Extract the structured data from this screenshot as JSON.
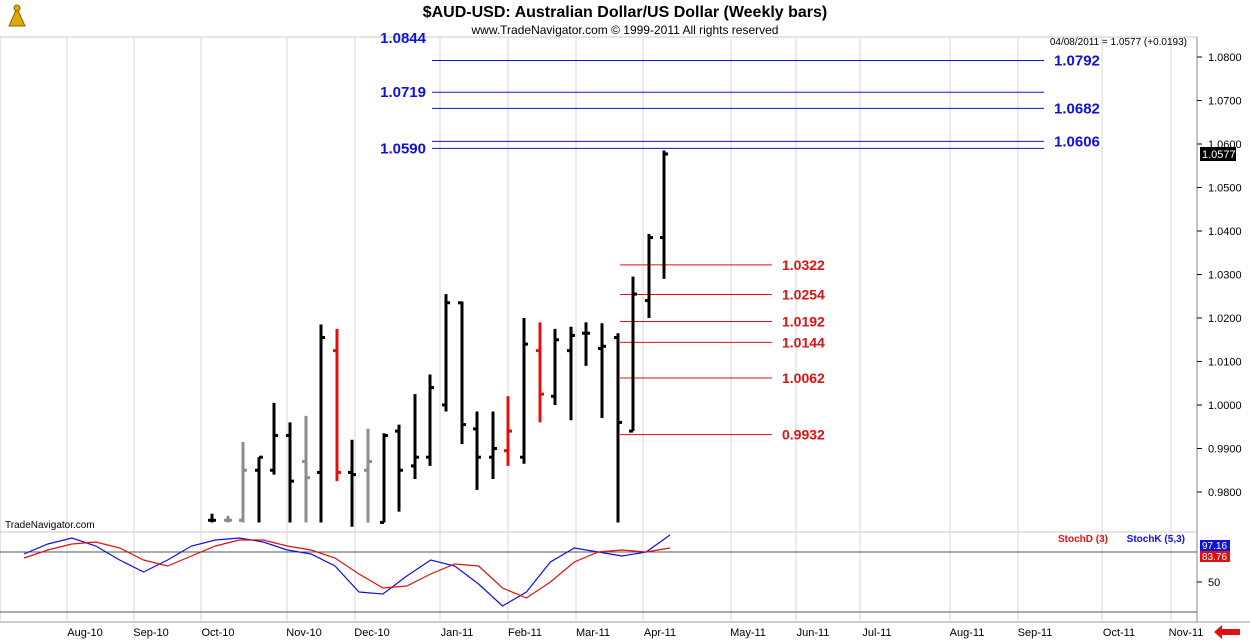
{
  "header": {
    "title": "$AUD-USD:  Australian Dollar/US Dollar  (Weekly bars)",
    "subtitle": "www.TradeNavigator.com © 1999-2011 All rights reserved",
    "info_line": "04/08/2011 = 1.0577 (+0.0193)",
    "watermark": "TradeNavigator.com",
    "last_price": "1.0577"
  },
  "colors": {
    "bar_up": "#000000",
    "bar_gray": "#8c8c8c",
    "bar_red": "#e01010",
    "fib_blue": "#1010dd",
    "fib_red": "#e01010",
    "stoch_d": "#e01010",
    "stoch_k": "#1010dd",
    "arrow": "#e01010"
  },
  "chart_data": [
    {
      "type": "ohlc",
      "title": "$AUD-USD:  Australian Dollar/US Dollar  (Weekly bars)",
      "ylim": [
        0.973,
        1.084
      ],
      "y_ticks": [
        "1.0800",
        "1.0700",
        "1.0600",
        "1.0500",
        "1.0400",
        "1.0300",
        "1.0200",
        "1.0100",
        "1.0000",
        "0.9900",
        "0.9800"
      ],
      "x_ticks": [
        "Aug-10",
        "Sep-10",
        "Oct-10",
        "Nov-10",
        "Dec-10",
        "Jan-11",
        "Feb-11",
        "Mar-11",
        "Apr-11",
        "May-11",
        "Jun-11",
        "Jul-11",
        "Aug-11",
        "Sep-11",
        "Oct-11",
        "Nov-11"
      ],
      "bars": [
        {
          "o": 0.9735,
          "h": 0.975,
          "l": 0.973,
          "c": 0.9735,
          "color": "black"
        },
        {
          "o": 0.9735,
          "h": 0.9745,
          "l": 0.973,
          "c": 0.9735,
          "color": "gray"
        },
        {
          "o": 0.9735,
          "h": 0.9915,
          "l": 0.973,
          "c": 0.985,
          "color": "gray"
        },
        {
          "o": 0.985,
          "h": 0.988,
          "l": 0.973,
          "c": 0.988,
          "color": "black"
        },
        {
          "o": 0.985,
          "h": 1.0005,
          "l": 0.984,
          "c": 0.993,
          "color": "black"
        },
        {
          "o": 0.993,
          "h": 0.996,
          "l": 0.973,
          "c": 0.9825,
          "color": "black"
        },
        {
          "o": 0.987,
          "h": 0.9975,
          "l": 0.973,
          "c": 0.9833,
          "color": "gray"
        },
        {
          "o": 0.9845,
          "h": 1.0185,
          "l": 0.973,
          "c": 1.0155,
          "color": "black"
        },
        {
          "o": 1.0125,
          "h": 1.0175,
          "l": 0.9825,
          "c": 0.9845,
          "color": "red"
        },
        {
          "o": 0.9845,
          "h": 0.992,
          "l": 0.972,
          "c": 0.984,
          "color": "black"
        },
        {
          "o": 0.985,
          "h": 0.9945,
          "l": 0.973,
          "c": 0.987,
          "color": "gray"
        },
        {
          "o": 0.973,
          "h": 0.9935,
          "l": 0.973,
          "c": 0.993,
          "color": "black"
        },
        {
          "o": 0.994,
          "h": 0.9955,
          "l": 0.9755,
          "c": 0.985,
          "color": "black"
        },
        {
          "o": 0.986,
          "h": 1.0025,
          "l": 0.983,
          "c": 0.988,
          "color": "black"
        },
        {
          "o": 0.988,
          "h": 1.007,
          "l": 0.986,
          "c": 1.004,
          "color": "black"
        },
        {
          "o": 1.0,
          "h": 1.0255,
          "l": 0.9985,
          "c": 1.0235,
          "color": "black"
        },
        {
          "o": 1.0235,
          "h": 1.0238,
          "l": 0.991,
          "c": 0.9955,
          "color": "black"
        },
        {
          "o": 0.9945,
          "h": 0.9985,
          "l": 0.9805,
          "c": 0.988,
          "color": "black"
        },
        {
          "o": 0.988,
          "h": 0.9985,
          "l": 0.983,
          "c": 0.99,
          "color": "black"
        },
        {
          "o": 0.9895,
          "h": 1.002,
          "l": 0.986,
          "c": 0.994,
          "color": "red"
        },
        {
          "o": 0.988,
          "h": 1.02,
          "l": 0.9865,
          "c": 1.014,
          "color": "black"
        },
        {
          "o": 1.0125,
          "h": 1.019,
          "l": 0.996,
          "c": 1.0025,
          "color": "red"
        },
        {
          "o": 1.002,
          "h": 1.0175,
          "l": 1.0,
          "c": 1.015,
          "color": "black"
        },
        {
          "o": 1.0125,
          "h": 1.018,
          "l": 0.9965,
          "c": 1.016,
          "color": "black"
        },
        {
          "o": 1.0165,
          "h": 1.019,
          "l": 1.009,
          "c": 1.0165,
          "color": "black"
        },
        {
          "o": 1.013,
          "h": 1.0188,
          "l": 0.997,
          "c": 1.0135,
          "color": "black"
        },
        {
          "o": 1.0155,
          "h": 1.0165,
          "l": 0.973,
          "c": 0.996,
          "color": "black"
        },
        {
          "o": 0.994,
          "h": 1.0295,
          "l": 0.994,
          "c": 1.0255,
          "color": "black"
        },
        {
          "o": 1.024,
          "h": 1.0393,
          "l": 1.02,
          "c": 1.0385,
          "color": "black"
        },
        {
          "o": 1.0385,
          "h": 1.0585,
          "l": 1.029,
          "c": 1.0577,
          "color": "black"
        }
      ],
      "fib_levels": [
        {
          "label": "1.0844",
          "value": 1.0844,
          "color": "blue",
          "side": "left"
        },
        {
          "label": "1.0792",
          "value": 1.0792,
          "color": "blue",
          "side": "right"
        },
        {
          "label": "1.0719",
          "value": 1.0719,
          "color": "blue",
          "side": "left"
        },
        {
          "label": "1.0682",
          "value": 1.0682,
          "color": "blue",
          "side": "right"
        },
        {
          "label": "1.0606",
          "value": 1.0606,
          "color": "blue",
          "side": "right"
        },
        {
          "label": "1.0590",
          "value": 1.059,
          "color": "blue",
          "side": "left"
        },
        {
          "label": "1.0322",
          "value": 1.0322,
          "color": "red",
          "side": "right"
        },
        {
          "label": "1.0254",
          "value": 1.0254,
          "color": "red",
          "side": "right"
        },
        {
          "label": "1.0192",
          "value": 1.0192,
          "color": "red",
          "side": "right"
        },
        {
          "label": "1.0144",
          "value": 1.0144,
          "color": "red",
          "side": "right"
        },
        {
          "label": "1.0062",
          "value": 1.0062,
          "color": "red",
          "side": "right"
        },
        {
          "label": "0.9932",
          "value": 0.9932,
          "color": "red",
          "side": "right"
        }
      ]
    },
    {
      "type": "line",
      "ylim": [
        20,
        100
      ],
      "y_ticks": [
        "50"
      ],
      "legend": [
        {
          "name": "StochD (3)",
          "color": "red"
        },
        {
          "name": "StochK (5,3)",
          "color": "blue"
        }
      ],
      "last_values": {
        "k": "97.16",
        "d": "83.76"
      },
      "series": [
        {
          "name": "StochK (5,3)",
          "values": [
            78,
            88,
            94,
            86,
            72,
            60,
            72,
            86,
            92,
            94,
            90,
            82,
            78,
            66,
            40,
            38,
            56,
            72,
            66,
            48,
            26,
            40,
            70,
            84,
            80,
            76,
            80,
            97
          ]
        },
        {
          "name": "StochD (3)",
          "values": [
            74,
            82,
            88,
            90,
            84,
            72,
            66,
            76,
            86,
            92,
            92,
            86,
            82,
            74,
            58,
            44,
            46,
            58,
            68,
            66,
            44,
            34,
            50,
            70,
            80,
            82,
            80,
            84
          ]
        }
      ]
    }
  ]
}
